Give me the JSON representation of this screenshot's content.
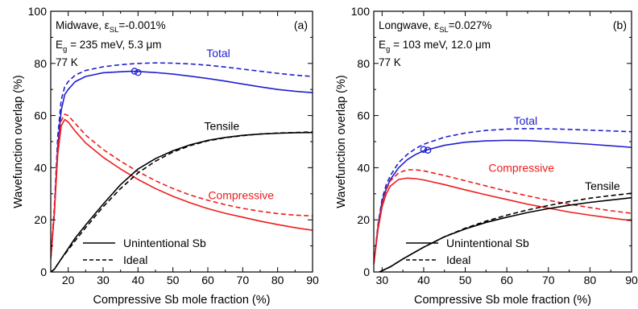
{
  "colors": {
    "blue": "#1f1fd0",
    "red": "#ee1c1c",
    "black": "#000000"
  },
  "chart_data": [
    {
      "type": "line",
      "panel_label": "(a)",
      "xlabel": "Compressive Sb mole fraction (%)",
      "ylabel": "Wavefunction overlap (%)",
      "xlim": [
        15,
        90
      ],
      "ylim": [
        0,
        100
      ],
      "xticks": [
        "20",
        "30",
        "40",
        "50",
        "60",
        "70",
        "80",
        "90"
      ],
      "yticks": [
        "0",
        "20",
        "40",
        "60",
        "80",
        "100"
      ],
      "info": {
        "line1_main": "Midwave, ε",
        "line1_sub": "SL",
        "line1_rest": "=-0.001%",
        "line2_main": "E",
        "line2_sub": "g",
        "line2_rest": " = 235 meV, 5.3 μm",
        "line3": "77 K"
      },
      "legend": {
        "solid": "Unintentional Sb",
        "dashed": "Ideal"
      },
      "series": [
        {
          "name": "Total",
          "color": "blue",
          "style": "solid",
          "x": [
            15,
            16,
            17,
            18,
            19,
            20,
            22,
            25,
            30,
            35,
            38,
            40,
            45,
            50,
            55,
            60,
            65,
            70,
            75,
            80,
            85,
            90
          ],
          "y": [
            5,
            22,
            48,
            62,
            68,
            70,
            73,
            75,
            76.4,
            76.8,
            77,
            76.9,
            76.5,
            75.9,
            75.1,
            74.2,
            73.2,
            72.1,
            71,
            70,
            69.3,
            68.8
          ]
        },
        {
          "name": "Total",
          "color": "blue",
          "style": "dashed",
          "x": [
            15,
            16,
            17,
            18,
            19,
            20,
            22,
            25,
            30,
            35,
            40,
            45,
            50,
            55,
            60,
            65,
            70,
            75,
            80,
            85,
            90
          ],
          "y": [
            5,
            24,
            52,
            66,
            71,
            73,
            75.5,
            77.3,
            78.7,
            79.5,
            80,
            80.2,
            80.1,
            79.8,
            79.3,
            78.6,
            77.8,
            77,
            76.2,
            75.5,
            75
          ]
        },
        {
          "name": "Compressive",
          "color": "red",
          "style": "solid",
          "x": [
            15,
            16,
            17,
            18,
            19,
            20,
            22,
            25,
            30,
            35,
            40,
            45,
            50,
            55,
            60,
            65,
            70,
            75,
            80,
            85,
            90
          ],
          "y": [
            5,
            22,
            45,
            56,
            58.5,
            57.5,
            54,
            49.5,
            44,
            39.5,
            35.5,
            32,
            29,
            26.5,
            24.3,
            22.5,
            21,
            19.5,
            18.2,
            17,
            16
          ]
        },
        {
          "name": "Compressive",
          "color": "red",
          "style": "dashed",
          "x": [
            15,
            16,
            17,
            18,
            19,
            20,
            22,
            25,
            30,
            35,
            40,
            45,
            50,
            55,
            60,
            65,
            70,
            75,
            80,
            85,
            90
          ],
          "y": [
            5,
            24,
            48,
            58,
            60.5,
            60,
            57,
            52.5,
            47,
            42.5,
            38.5,
            35,
            32,
            29.5,
            27.5,
            25.8,
            24.4,
            23.3,
            22.4,
            21.8,
            21.5
          ]
        },
        {
          "name": "Tensile",
          "color": "black",
          "style": "solid",
          "x": [
            15,
            16,
            17,
            18,
            20,
            22,
            25,
            30,
            35,
            40,
            45,
            50,
            55,
            60,
            65,
            70,
            75,
            80,
            85,
            90
          ],
          "y": [
            0,
            1,
            3,
            5,
            9,
            13,
            18,
            26,
            33.5,
            39.5,
            43.5,
            46.5,
            48.8,
            50.5,
            51.6,
            52.4,
            52.9,
            53.2,
            53.4,
            53.5
          ]
        },
        {
          "name": "Tensile",
          "color": "black",
          "style": "dashed",
          "x": [
            15,
            16,
            17,
            18,
            20,
            22,
            25,
            30,
            35,
            40,
            45,
            50,
            55,
            60,
            65,
            70,
            75,
            80,
            85,
            90
          ],
          "y": [
            0,
            1,
            3,
            5,
            8.5,
            12,
            17,
            25,
            32,
            38,
            42.5,
            46,
            48.5,
            50.3,
            51.5,
            52.3,
            52.9,
            53.3,
            53.5,
            53.7
          ]
        }
      ],
      "markers": [
        {
          "x": 39,
          "y": 77
        },
        {
          "x": 40,
          "y": 76.5
        }
      ],
      "annotations": [
        {
          "text": "Total",
          "color": "blue",
          "x": 63,
          "y": 84
        },
        {
          "text": "Tensile",
          "color": "black",
          "x": 64,
          "y": 56
        },
        {
          "text": "Compressive",
          "color": "red",
          "x": 69.5,
          "y": 29.5
        }
      ]
    },
    {
      "type": "line",
      "panel_label": "(b)",
      "xlabel": "Compressive Sb mole fraction (%)",
      "ylabel": "Wavefunction overlap (%)",
      "xlim": [
        28,
        90
      ],
      "ylim": [
        0,
        100
      ],
      "xticks": [
        "30",
        "40",
        "50",
        "60",
        "70",
        "80",
        "90"
      ],
      "yticks": [
        "0",
        "20",
        "40",
        "60",
        "80",
        "100"
      ],
      "info": {
        "line1_main": "Longwave, ε",
        "line1_sub": "SL",
        "line1_rest": "=0.027%",
        "line2_main": "E",
        "line2_sub": "g",
        "line2_rest": " = 103 meV, 12.0 μm",
        "line3": "77 K"
      },
      "legend": {
        "solid": "Unintentional Sb",
        "dashed": "Ideal"
      },
      "series": [
        {
          "name": "Total",
          "color": "blue",
          "style": "solid",
          "x": [
            28,
            29,
            30,
            31,
            32,
            34,
            36,
            38,
            40,
            45,
            50,
            55,
            60,
            65,
            70,
            75,
            80,
            85,
            90
          ],
          "y": [
            3,
            17,
            27,
            32,
            35.5,
            40,
            43,
            45,
            46.5,
            48.6,
            49.8,
            50.3,
            50.5,
            50.4,
            50,
            49.5,
            49,
            48.4,
            47.8
          ]
        },
        {
          "name": "Total",
          "color": "blue",
          "style": "dashed",
          "x": [
            28,
            29,
            30,
            31,
            32,
            34,
            36,
            38,
            40,
            45,
            50,
            55,
            60,
            65,
            70,
            75,
            80,
            85,
            90
          ],
          "y": [
            3,
            18,
            28,
            33.5,
            37,
            42,
            45,
            47.3,
            49,
            51.7,
            53.3,
            54.3,
            54.8,
            55,
            54.9,
            54.7,
            54.4,
            54.1,
            53.8
          ]
        },
        {
          "name": "Compressive",
          "color": "red",
          "style": "solid",
          "x": [
            28,
            29,
            30,
            31,
            32,
            34,
            36,
            38,
            40,
            45,
            50,
            55,
            60,
            65,
            70,
            75,
            80,
            85,
            90
          ],
          "y": [
            3,
            16,
            25,
            30,
            33,
            35.5,
            36,
            35.8,
            35.3,
            33.5,
            31.5,
            29.6,
            27.8,
            26,
            24.5,
            23,
            21.8,
            20.7,
            19.7
          ]
        },
        {
          "name": "Compressive",
          "color": "red",
          "style": "dashed",
          "x": [
            28,
            29,
            30,
            31,
            32,
            34,
            36,
            38,
            40,
            45,
            50,
            55,
            60,
            65,
            70,
            75,
            80,
            85,
            90
          ],
          "y": [
            3,
            17,
            26,
            31.5,
            35,
            38,
            39.2,
            39.2,
            38.8,
            37,
            35,
            33,
            31,
            29.2,
            27.5,
            26,
            24.7,
            23.5,
            22.5
          ]
        },
        {
          "name": "Tensile",
          "color": "black",
          "style": "solid",
          "x": [
            28,
            30,
            32,
            35,
            40,
            45,
            50,
            55,
            60,
            65,
            70,
            75,
            80,
            85,
            90
          ],
          "y": [
            -1,
            0.5,
            2,
            5,
            9.5,
            13.5,
            16.5,
            19,
            21,
            22.8,
            24.3,
            25.6,
            26.7,
            27.6,
            28.5
          ]
        },
        {
          "name": "Tensile",
          "color": "black",
          "style": "dashed",
          "x": [
            28,
            30,
            32,
            35,
            40,
            45,
            50,
            55,
            60,
            65,
            70,
            75,
            80,
            85,
            90
          ],
          "y": [
            -1,
            0.5,
            2,
            5,
            9.5,
            13.5,
            16.8,
            19.5,
            21.8,
            23.8,
            25.5,
            27,
            28.3,
            29.3,
            30.2
          ]
        }
      ],
      "markers": [
        {
          "x": 40,
          "y": 47
        },
        {
          "x": 41,
          "y": 46.7
        }
      ],
      "annotations": [
        {
          "text": "Total",
          "color": "blue",
          "x": 64.5,
          "y": 58
        },
        {
          "text": "Compressive",
          "color": "red",
          "x": 63.5,
          "y": 40
        },
        {
          "text": "Tensile",
          "color": "black",
          "x": 83,
          "y": 33
        }
      ]
    }
  ]
}
